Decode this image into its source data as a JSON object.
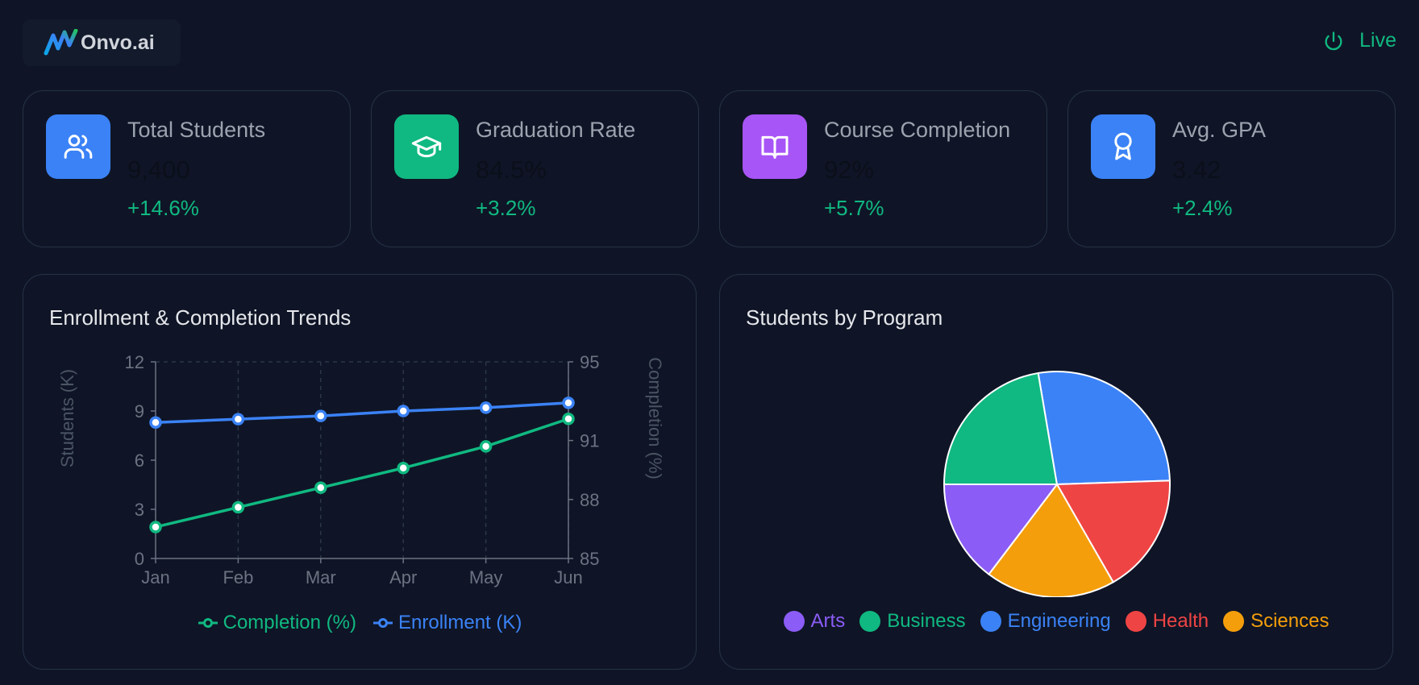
{
  "header": {
    "brand": "Onvo.ai",
    "status_label": "Live"
  },
  "kpis": [
    {
      "title": "Total Students",
      "value": "9,400",
      "change": "+14.6%",
      "icon": "users-icon",
      "color": "#3b82f6"
    },
    {
      "title": "Graduation Rate",
      "value": "84.5%",
      "change": "+3.2%",
      "icon": "graduation-cap-icon",
      "color": "#10b981"
    },
    {
      "title": "Course Completion",
      "value": "92%",
      "change": "+5.7%",
      "icon": "book-open-icon",
      "color": "#a855f7"
    },
    {
      "title": "Avg. GPA",
      "value": "3.42",
      "change": "+2.4%",
      "icon": "award-icon",
      "color": "#3b82f6"
    }
  ],
  "trend_panel": {
    "title": "Enrollment & Completion Trends"
  },
  "program_panel": {
    "title": "Students by Program"
  },
  "chart_data": [
    {
      "type": "line",
      "title": "Enrollment & Completion Trends",
      "categories": [
        "Jan",
        "Feb",
        "Mar",
        "Apr",
        "May",
        "Jun"
      ],
      "ylabel_left": "Students (K)",
      "ylabel_right": "Completion (%)",
      "ylim_left": [
        0,
        12
      ],
      "yticks_left": [
        "0",
        "3",
        "6",
        "9",
        "12"
      ],
      "ylim_right": [
        85,
        95
      ],
      "yticks_right": [
        "85",
        "88",
        "91",
        "95"
      ],
      "series": [
        {
          "name": "Completion (%)",
          "axis": "right",
          "color": "#10b981",
          "values": [
            86.6,
            87.6,
            88.6,
            89.6,
            90.7,
            92.1
          ]
        },
        {
          "name": "Enrollment (K)",
          "axis": "left",
          "color": "#3b82f6",
          "values": [
            8.3,
            8.5,
            8.7,
            9.0,
            9.2,
            9.5
          ]
        }
      ]
    },
    {
      "type": "pie",
      "title": "Students by Program",
      "categories": [
        "Arts",
        "Business",
        "Engineering",
        "Health",
        "Sciences"
      ],
      "values": [
        1380,
        2100,
        2550,
        1620,
        1750
      ],
      "colors": [
        "#8b5cf6",
        "#10b981",
        "#3b82f6",
        "#ef4444",
        "#f59e0b"
      ]
    }
  ]
}
